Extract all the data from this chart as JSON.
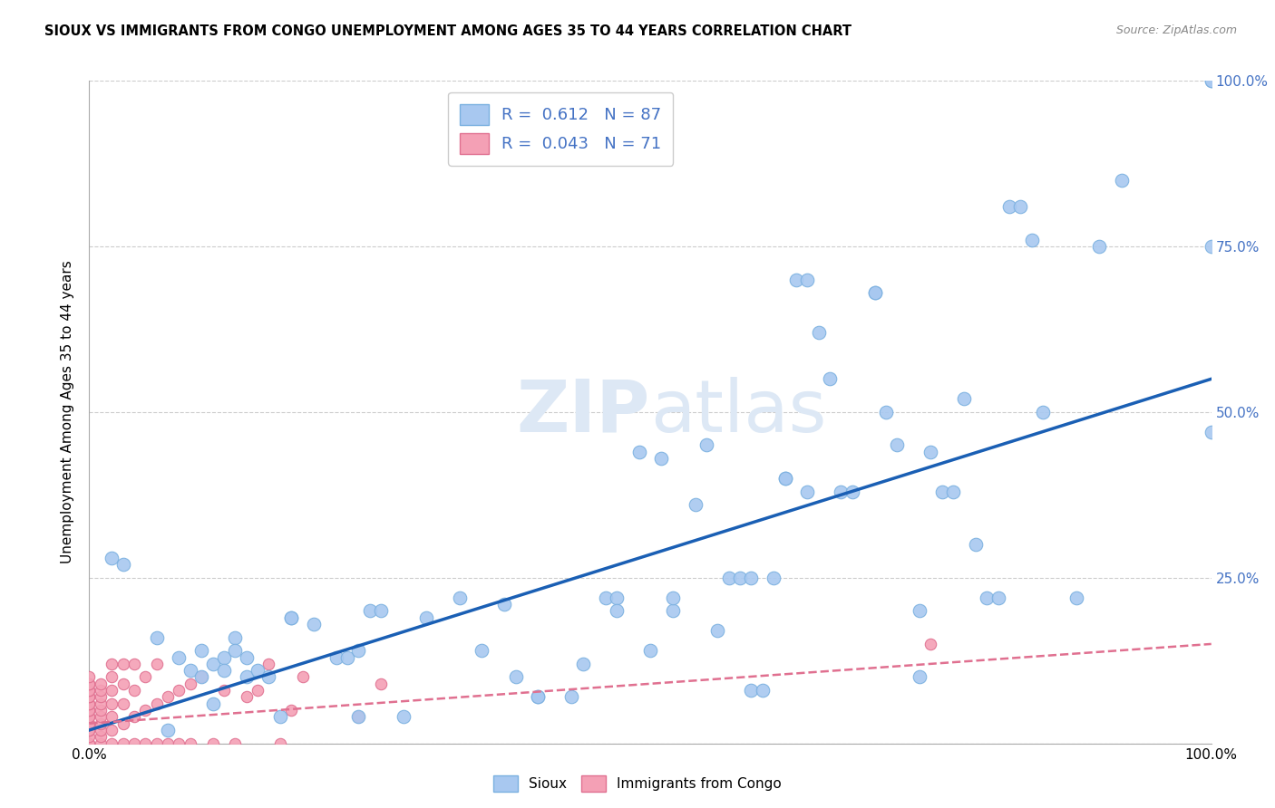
{
  "title": "SIOUX VS IMMIGRANTS FROM CONGO UNEMPLOYMENT AMONG AGES 35 TO 44 YEARS CORRELATION CHART",
  "source": "Source: ZipAtlas.com",
  "ylabel": "Unemployment Among Ages 35 to 44 years",
  "sioux_color": "#a8c8f0",
  "sioux_edge_color": "#7ab0e0",
  "congo_color": "#f4a0b5",
  "congo_edge_color": "#e07090",
  "sioux_line_color": "#1a5fb4",
  "congo_line_color": "#e07090",
  "right_tick_color": "#4472c4",
  "watermark_color": "#dde8f5",
  "legend_label_color": "#4472c4",
  "sioux_r": "0.612",
  "sioux_n": "87",
  "congo_r": "0.043",
  "congo_n": "71",
  "sioux_line_intercept": 0.02,
  "sioux_line_slope": 0.53,
  "congo_line_intercept": 0.03,
  "congo_line_slope": 0.12,
  "sioux_points": [
    [
      0.02,
      0.28
    ],
    [
      0.03,
      0.27
    ],
    [
      0.06,
      0.16
    ],
    [
      0.07,
      0.02
    ],
    [
      0.08,
      0.13
    ],
    [
      0.09,
      0.11
    ],
    [
      0.1,
      0.14
    ],
    [
      0.1,
      0.1
    ],
    [
      0.11,
      0.12
    ],
    [
      0.11,
      0.06
    ],
    [
      0.12,
      0.13
    ],
    [
      0.12,
      0.11
    ],
    [
      0.13,
      0.16
    ],
    [
      0.13,
      0.14
    ],
    [
      0.14,
      0.13
    ],
    [
      0.14,
      0.1
    ],
    [
      0.15,
      0.11
    ],
    [
      0.16,
      0.1
    ],
    [
      0.17,
      0.04
    ],
    [
      0.18,
      0.19
    ],
    [
      0.18,
      0.19
    ],
    [
      0.2,
      0.18
    ],
    [
      0.22,
      0.13
    ],
    [
      0.23,
      0.13
    ],
    [
      0.24,
      0.14
    ],
    [
      0.24,
      0.04
    ],
    [
      0.25,
      0.2
    ],
    [
      0.26,
      0.2
    ],
    [
      0.28,
      0.04
    ],
    [
      0.3,
      0.19
    ],
    [
      0.33,
      0.22
    ],
    [
      0.35,
      0.14
    ],
    [
      0.37,
      0.21
    ],
    [
      0.38,
      0.1
    ],
    [
      0.4,
      0.07
    ],
    [
      0.4,
      0.07
    ],
    [
      0.43,
      0.07
    ],
    [
      0.44,
      0.12
    ],
    [
      0.46,
      0.22
    ],
    [
      0.47,
      0.22
    ],
    [
      0.47,
      0.2
    ],
    [
      0.49,
      0.44
    ],
    [
      0.5,
      0.14
    ],
    [
      0.51,
      0.43
    ],
    [
      0.52,
      0.2
    ],
    [
      0.52,
      0.22
    ],
    [
      0.54,
      0.36
    ],
    [
      0.55,
      0.45
    ],
    [
      0.56,
      0.17
    ],
    [
      0.57,
      0.25
    ],
    [
      0.58,
      0.25
    ],
    [
      0.59,
      0.25
    ],
    [
      0.59,
      0.08
    ],
    [
      0.6,
      0.08
    ],
    [
      0.61,
      0.25
    ],
    [
      0.62,
      0.4
    ],
    [
      0.62,
      0.4
    ],
    [
      0.63,
      0.7
    ],
    [
      0.64,
      0.7
    ],
    [
      0.64,
      0.38
    ],
    [
      0.65,
      0.62
    ],
    [
      0.66,
      0.55
    ],
    [
      0.67,
      0.38
    ],
    [
      0.68,
      0.38
    ],
    [
      0.7,
      0.68
    ],
    [
      0.7,
      0.68
    ],
    [
      0.71,
      0.5
    ],
    [
      0.72,
      0.45
    ],
    [
      0.74,
      0.2
    ],
    [
      0.74,
      0.1
    ],
    [
      0.75,
      0.44
    ],
    [
      0.76,
      0.38
    ],
    [
      0.77,
      0.38
    ],
    [
      0.78,
      0.52
    ],
    [
      0.79,
      0.3
    ],
    [
      0.8,
      0.22
    ],
    [
      0.81,
      0.22
    ],
    [
      0.82,
      0.81
    ],
    [
      0.83,
      0.81
    ],
    [
      0.84,
      0.76
    ],
    [
      0.85,
      0.5
    ],
    [
      0.88,
      0.22
    ],
    [
      0.9,
      0.75
    ],
    [
      0.92,
      0.85
    ],
    [
      1.0,
      0.47
    ],
    [
      1.0,
      0.75
    ],
    [
      1.0,
      1.0
    ],
    [
      1.0,
      1.0
    ]
  ],
  "congo_points": [
    [
      0.0,
      0.0
    ],
    [
      0.0,
      0.0
    ],
    [
      0.0,
      0.01
    ],
    [
      0.0,
      0.02
    ],
    [
      0.0,
      0.02
    ],
    [
      0.0,
      0.03
    ],
    [
      0.0,
      0.03
    ],
    [
      0.0,
      0.04
    ],
    [
      0.0,
      0.04
    ],
    [
      0.0,
      0.05
    ],
    [
      0.0,
      0.05
    ],
    [
      0.0,
      0.06
    ],
    [
      0.0,
      0.06
    ],
    [
      0.0,
      0.07
    ],
    [
      0.0,
      0.07
    ],
    [
      0.0,
      0.08
    ],
    [
      0.0,
      0.08
    ],
    [
      0.0,
      0.09
    ],
    [
      0.0,
      0.09
    ],
    [
      0.0,
      0.1
    ],
    [
      0.01,
      0.0
    ],
    [
      0.01,
      0.01
    ],
    [
      0.01,
      0.02
    ],
    [
      0.01,
      0.03
    ],
    [
      0.01,
      0.04
    ],
    [
      0.01,
      0.05
    ],
    [
      0.01,
      0.06
    ],
    [
      0.01,
      0.07
    ],
    [
      0.01,
      0.08
    ],
    [
      0.01,
      0.09
    ],
    [
      0.02,
      0.0
    ],
    [
      0.02,
      0.02
    ],
    [
      0.02,
      0.04
    ],
    [
      0.02,
      0.06
    ],
    [
      0.02,
      0.08
    ],
    [
      0.02,
      0.1
    ],
    [
      0.02,
      0.12
    ],
    [
      0.03,
      0.0
    ],
    [
      0.03,
      0.03
    ],
    [
      0.03,
      0.06
    ],
    [
      0.03,
      0.09
    ],
    [
      0.03,
      0.12
    ],
    [
      0.04,
      0.0
    ],
    [
      0.04,
      0.04
    ],
    [
      0.04,
      0.08
    ],
    [
      0.04,
      0.12
    ],
    [
      0.05,
      0.0
    ],
    [
      0.05,
      0.05
    ],
    [
      0.05,
      0.1
    ],
    [
      0.06,
      0.0
    ],
    [
      0.06,
      0.06
    ],
    [
      0.06,
      0.12
    ],
    [
      0.07,
      0.0
    ],
    [
      0.07,
      0.07
    ],
    [
      0.08,
      0.0
    ],
    [
      0.08,
      0.08
    ],
    [
      0.09,
      0.0
    ],
    [
      0.09,
      0.09
    ],
    [
      0.1,
      0.1
    ],
    [
      0.11,
      0.0
    ],
    [
      0.12,
      0.08
    ],
    [
      0.13,
      0.0
    ],
    [
      0.14,
      0.07
    ],
    [
      0.15,
      0.08
    ],
    [
      0.16,
      0.12
    ],
    [
      0.17,
      0.0
    ],
    [
      0.18,
      0.05
    ],
    [
      0.19,
      0.1
    ],
    [
      0.24,
      0.04
    ],
    [
      0.26,
      0.09
    ],
    [
      0.75,
      0.15
    ]
  ]
}
